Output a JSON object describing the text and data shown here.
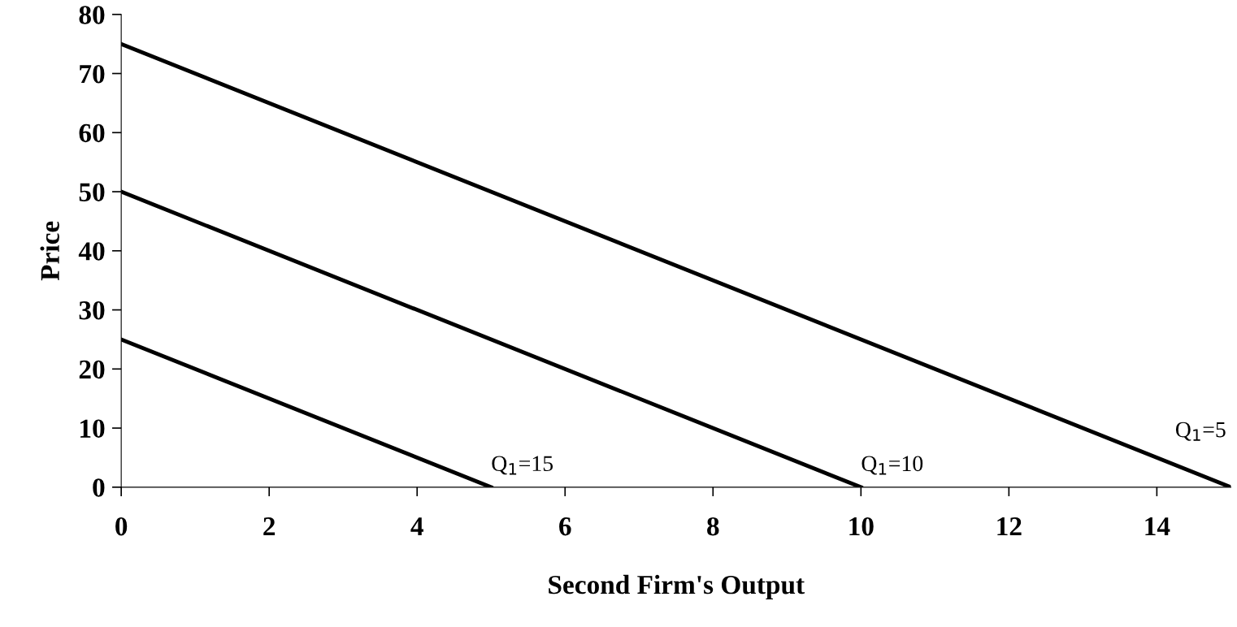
{
  "chart_data": {
    "type": "line",
    "xlabel": "Second Firm's Output",
    "ylabel": "Price",
    "series": [
      {
        "name": "Q$_{1}$=15",
        "color": "#000000",
        "x": [
          0,
          5
        ],
        "values": [
          25,
          0
        ]
      },
      {
        "name": "Q$_{1}$=10",
        "color": "#000000",
        "x": [
          0,
          10
        ],
        "values": [
          50,
          0
        ]
      },
      {
        "name": "Q$_{1}$=5",
        "color": "#000000",
        "x": [
          0,
          15
        ],
        "values": [
          75,
          0
        ]
      }
    ],
    "xlim": [
      0,
      15
    ],
    "xticks": [
      0,
      2,
      4,
      6,
      8,
      10,
      12,
      14
    ],
    "ylim": [
      0,
      80
    ],
    "yticks": [
      0,
      10,
      20,
      30,
      40,
      50,
      60,
      70,
      80
    ],
    "grid": false,
    "legend": false,
    "marker": "none",
    "line_style": "solid"
  }
}
